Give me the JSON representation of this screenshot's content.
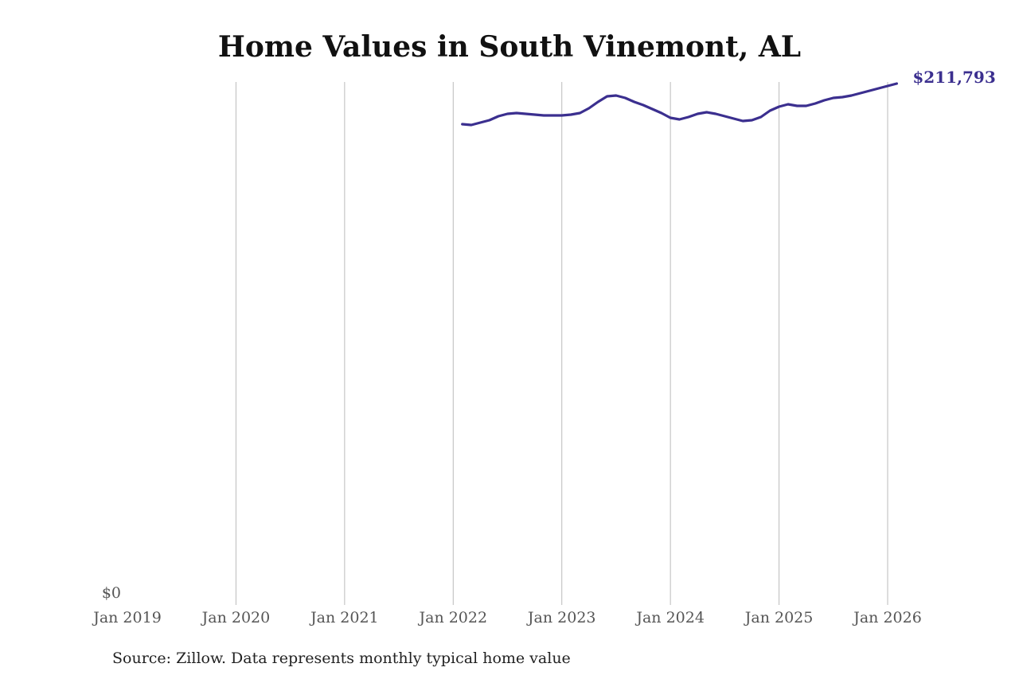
{
  "chart_data": {
    "type": "line",
    "title": "Home Values in South Vinemont, AL",
    "xlabel": "",
    "ylabel": "",
    "x_ticks": [
      "Jan 2019",
      "Jan 2020",
      "Jan 2021",
      "Jan 2022",
      "Jan 2023",
      "Jan 2024",
      "Jan 2025",
      "Jan 2026"
    ],
    "y_ticks": [
      "$0"
    ],
    "ylim": [
      0,
      211793
    ],
    "xlim": [
      "2019-01",
      "2026-02"
    ],
    "grid": "vertical",
    "last_value_label": "$211,793",
    "series": [
      {
        "name": "Typical home value",
        "color": "#3b2f8f",
        "x": [
          "2022-02",
          "2022-03",
          "2022-04",
          "2022-05",
          "2022-06",
          "2022-07",
          "2022-08",
          "2022-09",
          "2022-10",
          "2022-11",
          "2022-12",
          "2023-01",
          "2023-02",
          "2023-03",
          "2023-04",
          "2023-05",
          "2023-06",
          "2023-07",
          "2023-08",
          "2023-09",
          "2023-10",
          "2023-11",
          "2023-12",
          "2024-01",
          "2024-02",
          "2024-03",
          "2024-04",
          "2024-05",
          "2024-06",
          "2024-07",
          "2024-08",
          "2024-09",
          "2024-10",
          "2024-11",
          "2024-12",
          "2025-01",
          "2025-02",
          "2025-03",
          "2025-04",
          "2025-05",
          "2025-06",
          "2025-07",
          "2025-08",
          "2025-09",
          "2025-10",
          "2025-11",
          "2025-12",
          "2026-01",
          "2026-02"
        ],
        "values": [
          195300,
          194980,
          195950,
          196920,
          198540,
          199510,
          199830,
          199510,
          199180,
          198860,
          198860,
          198860,
          199180,
          199830,
          201770,
          204360,
          206620,
          206940,
          205970,
          204360,
          203060,
          201450,
          199830,
          197890,
          197240,
          198210,
          199510,
          200150,
          199510,
          198540,
          197570,
          196600,
          196920,
          198210,
          200800,
          202420,
          203390,
          202740,
          202740,
          203710,
          205000,
          205970,
          206300,
          206940,
          207910,
          208880,
          209850,
          210830,
          211793
        ]
      }
    ]
  },
  "source": "Source: Zillow. Data represents monthly typical home value"
}
